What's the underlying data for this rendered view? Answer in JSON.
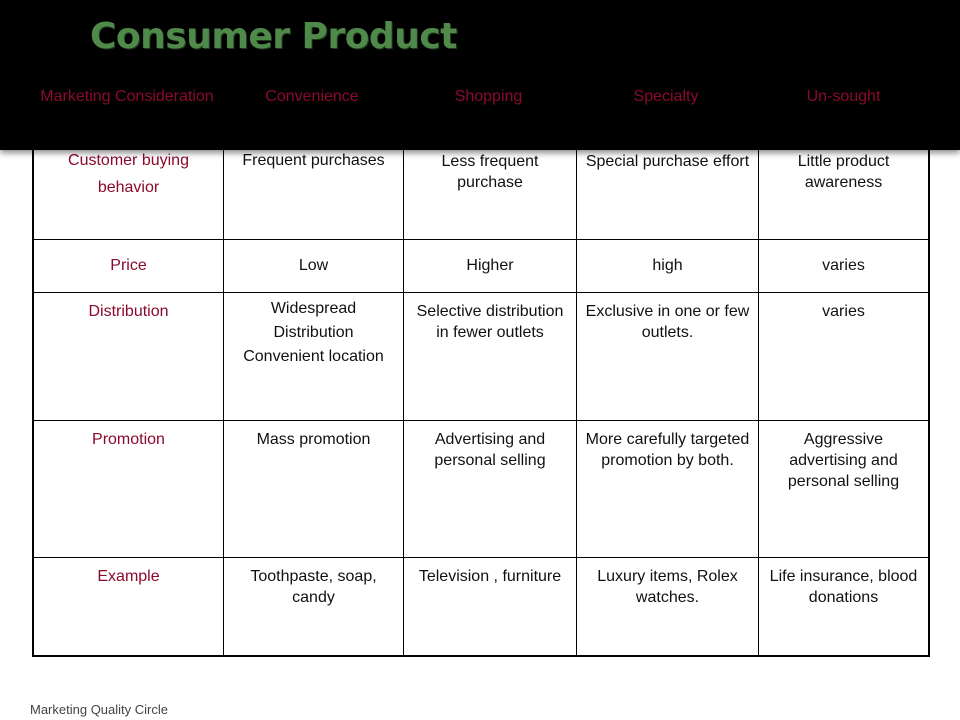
{
  "slide": {
    "title": "Consumer Product",
    "footer": "Marketing Quality Circle"
  },
  "table": {
    "columns": [
      "Marketing Consideration",
      "Convenience",
      "Shopping",
      "Specialty",
      "Un-sought"
    ],
    "rows": [
      {
        "label": "Customer buying behavior",
        "cells": [
          "Frequent purchases",
          "Less frequent purchase",
          "Special purchase effort",
          "Little product awareness"
        ]
      },
      {
        "label": "Price",
        "cells": [
          "Low",
          "Higher",
          "high",
          "varies"
        ]
      },
      {
        "label": "Distribution",
        "cells": [
          "Widespread Distribution Convenient location",
          "Selective distribution in fewer outlets",
          "Exclusive in one or few outlets.",
          "varies"
        ]
      },
      {
        "label": "Promotion",
        "cells": [
          "Mass promotion",
          "Advertising and personal selling",
          "More carefully targeted promotion by both.",
          "Aggressive advertising and personal selling"
        ]
      },
      {
        "label": "Example",
        "cells": [
          "Toothpaste, soap, candy",
          "Television , furniture",
          "Luxury items, Rolex watches.",
          "Life insurance, blood donations"
        ]
      }
    ]
  },
  "colors": {
    "header_bg": "#000000",
    "title": "#4f8a4a",
    "label_text": "#8b0a2e"
  }
}
